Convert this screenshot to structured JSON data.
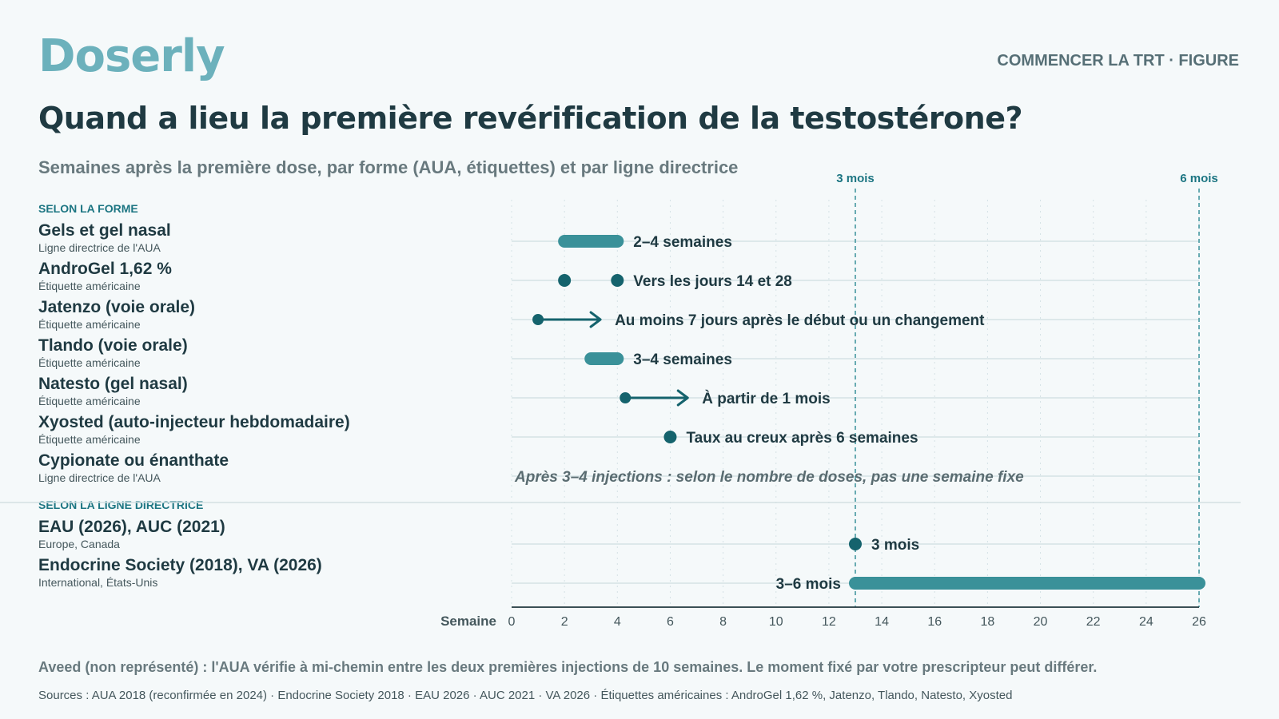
{
  "header": {
    "brand": "Doserly",
    "kicker": "COMMENCER LA TRT · FIGURE",
    "title": "Quand a lieu la première revérification de la testostérone?",
    "subtitle": "Semaines après la première dose, par forme (AUA, étiquettes) et par ligne directrice"
  },
  "sections": {
    "form": "SELON LA FORME",
    "guideline": "SELON LA LIGNE DIRECTRICE"
  },
  "rows": [
    {
      "name": "Gels et gel nasal",
      "source": "Ligne directrice de l'AUA"
    },
    {
      "name": "AndroGel 1,62 %",
      "source": "Étiquette américaine"
    },
    {
      "name": "Jatenzo (voie orale)",
      "source": "Étiquette américaine"
    },
    {
      "name": "Tlando (voie orale)",
      "source": "Étiquette américaine"
    },
    {
      "name": "Natesto (gel nasal)",
      "source": "Étiquette américaine"
    },
    {
      "name": "Xyosted (auto-injecteur hebdomadaire)",
      "source": "Étiquette américaine"
    },
    {
      "name": "Cypionate ou énanthate",
      "source": "Ligne directrice de l'AUA"
    },
    {
      "name": "EAU (2026), AUC (2021)",
      "source": "Europe, Canada"
    },
    {
      "name": "Endocrine Society (2018), VA (2026)",
      "source": "International, États-Unis"
    }
  ],
  "chart_data": {
    "type": "range-dot",
    "x_axis": {
      "label": "Semaine",
      "range": [
        0,
        26
      ],
      "ticks": [
        0,
        2,
        4,
        6,
        8,
        10,
        12,
        14,
        16,
        18,
        20,
        22,
        24,
        26
      ]
    },
    "reference_lines": [
      {
        "x": 13,
        "label": "3 mois"
      },
      {
        "x": 26,
        "label": "6 mois"
      }
    ],
    "series": [
      {
        "row": 0,
        "kind": "range",
        "x": [
          2,
          4
        ],
        "label": "2–4 semaines"
      },
      {
        "row": 1,
        "kind": "points",
        "x": [
          2,
          4
        ],
        "label": "Vers les jours 14 et 28"
      },
      {
        "row": 2,
        "kind": "arrow",
        "x": 1,
        "label": "Au moins 7 jours après le début ou un changement"
      },
      {
        "row": 3,
        "kind": "range",
        "x": [
          3,
          4
        ],
        "label": "3–4 semaines"
      },
      {
        "row": 4,
        "kind": "arrow",
        "x": 4.3,
        "label": "À partir de 1 mois"
      },
      {
        "row": 5,
        "kind": "points",
        "x": [
          6
        ],
        "label": "Taux au creux après 6 semaines"
      },
      {
        "row": 6,
        "kind": "note",
        "label": "Après 3–4 injections : selon le nombre de doses, pas une semaine fixe"
      },
      {
        "row": 7,
        "kind": "points",
        "x": [
          13
        ],
        "label": "3 mois"
      },
      {
        "row": 8,
        "kind": "range",
        "x": [
          13,
          26
        ],
        "label": "3–6 mois"
      }
    ],
    "colors": {
      "range": "#3a9199",
      "point": "#15636d",
      "reference": "#3a9199",
      "grid": "#d5e2e5"
    }
  },
  "footer": {
    "note": "Aveed (non représenté) : l'AUA vérifie à mi-chemin entre les deux premières injections de 10 semaines. Le moment fixé par votre prescripteur peut différer.",
    "sources": "Sources : AUA 2018 (reconfirmée en 2024) · Endocrine Society 2018 · EAU 2026 · AUC 2021 · VA 2026 · Étiquettes américaines : AndroGel 1,62 %, Jatenzo, Tlando, Natesto, Xyosted"
  }
}
